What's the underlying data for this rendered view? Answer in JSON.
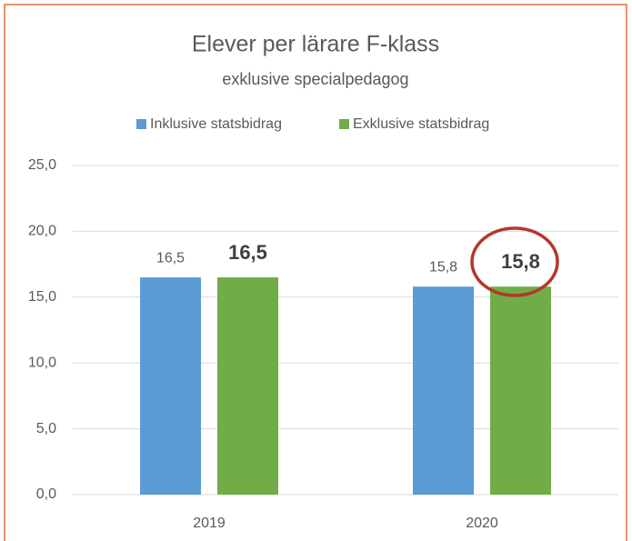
{
  "chart_data": {
    "type": "bar",
    "title": "Elever per lärare F-klass",
    "subtitle": "exklusive specialpedagog",
    "categories": [
      "2019",
      "2020"
    ],
    "series": [
      {
        "name": "Inklusive statsbidrag",
        "color": "#5b9bd5",
        "values": [
          16.5,
          15.8
        ],
        "value_labels": [
          "16,5",
          "15,8"
        ]
      },
      {
        "name": "Exklusive statsbidrag",
        "color": "#70ad47",
        "values": [
          16.5,
          15.8
        ],
        "value_labels": [
          "16,5",
          "15,8"
        ]
      }
    ],
    "ylim": [
      0,
      25
    ],
    "yticks": [
      {
        "value": 0,
        "label": "0,0"
      },
      {
        "value": 5,
        "label": "5,0"
      },
      {
        "value": 10,
        "label": "10,0"
      },
      {
        "value": 15,
        "label": "15,0"
      },
      {
        "value": 20,
        "label": "20,0"
      },
      {
        "value": 25,
        "label": "25,0"
      }
    ],
    "grid": true,
    "legend": "top"
  }
}
